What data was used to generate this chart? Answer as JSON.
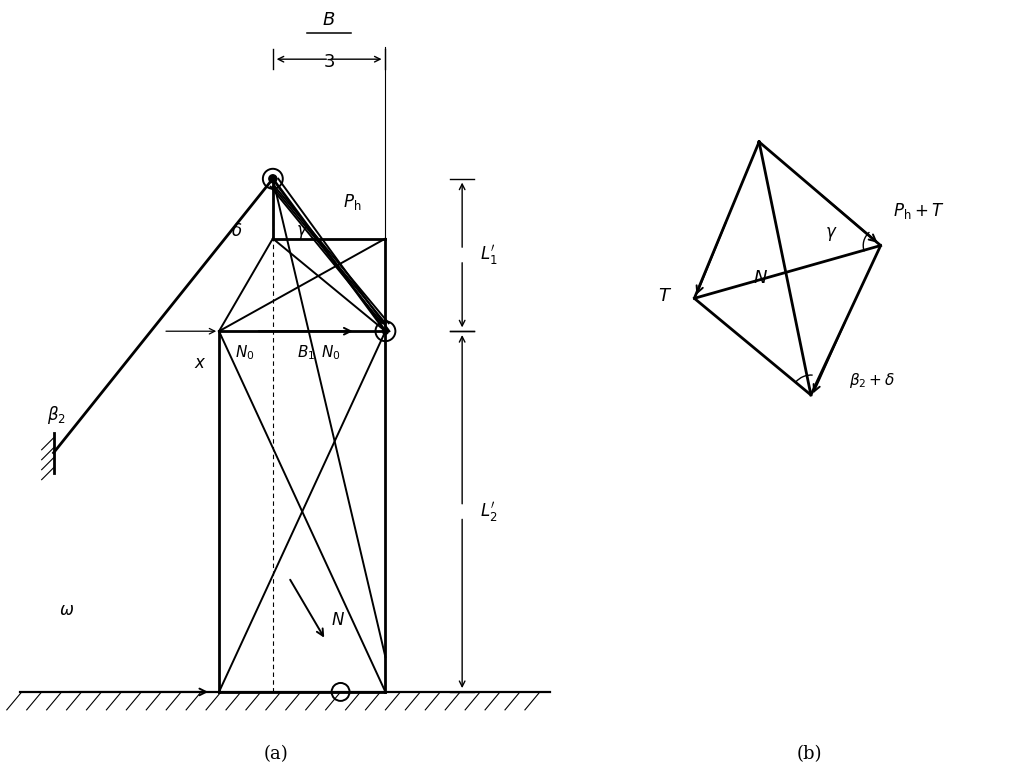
{
  "bg_color": "#ffffff",
  "line_color": "#000000",
  "fig_label_a": "(a)",
  "fig_label_b": "(b)",
  "annotations": {
    "Ph": "$P_{\\mathrm{h}}$",
    "delta": "$\\delta$",
    "gamma": "$\\gamma$",
    "beta2": "$\\beta_2$",
    "N0_left": "$N_0$",
    "N0_right": "$N_0$",
    "B1": "$B_1$",
    "x": "$x$",
    "N_a": "$N$",
    "omega": "$\\omega$",
    "L1prime": "$L_1^{\\prime}$",
    "L2prime": "$L_2^{\\prime}$",
    "T": "$T$",
    "N_b": "$N$",
    "gamma_b": "$\\gamma$",
    "Ph_T": "$P_{\\mathrm{h}}+T$",
    "beta2_delta": "$\\beta_2+\\delta$"
  }
}
